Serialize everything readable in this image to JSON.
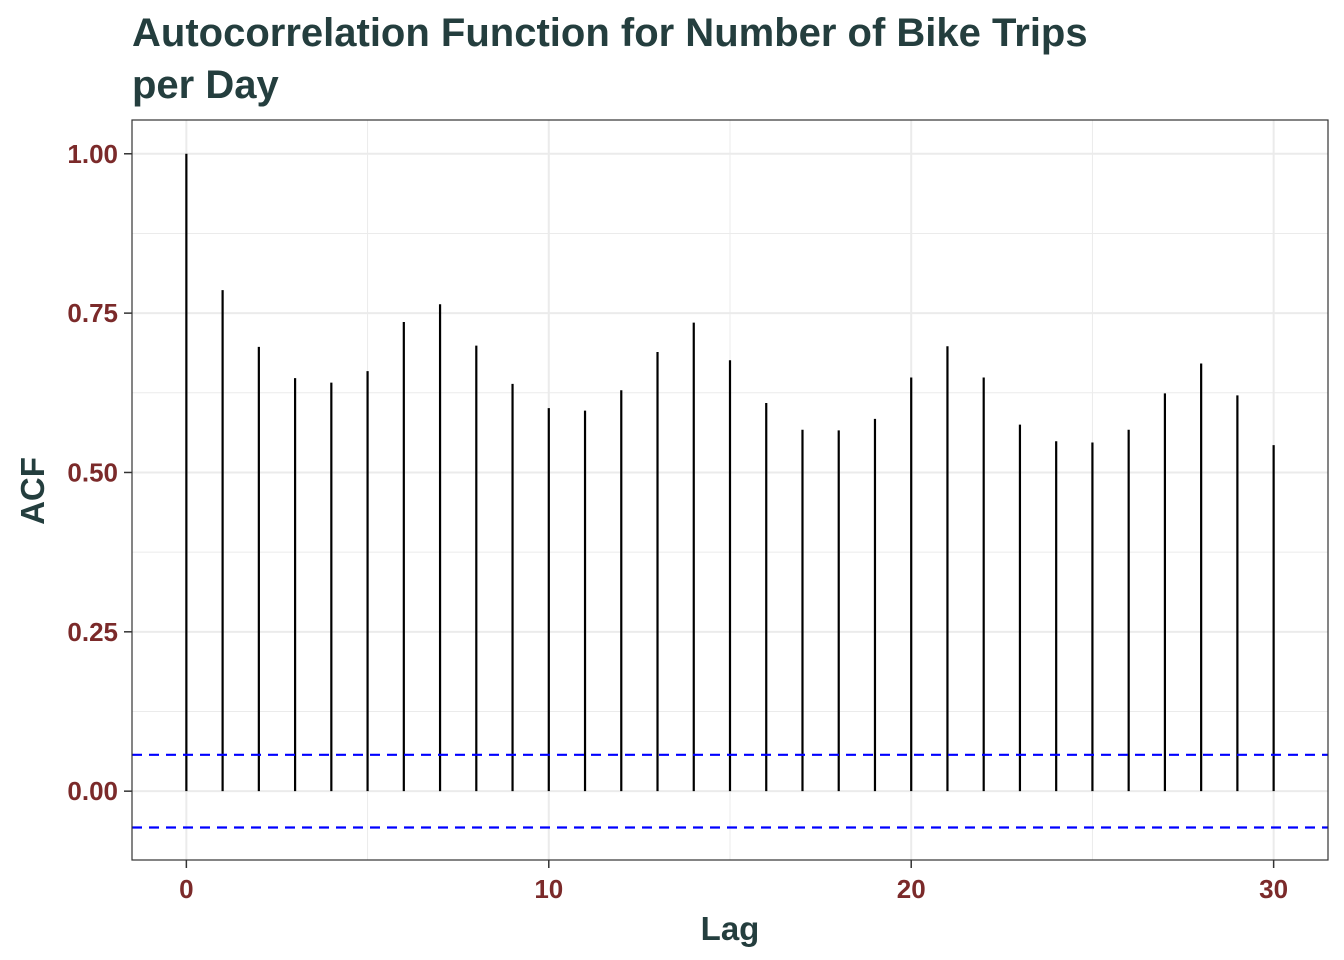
{
  "chart_data": {
    "type": "bar",
    "title_lines": [
      "Autocorrelation Function for Number of Bike Trips",
      "per Day"
    ],
    "xlabel": "Lag",
    "ylabel": "ACF",
    "x": [
      0,
      1,
      2,
      3,
      4,
      5,
      6,
      7,
      8,
      9,
      10,
      11,
      12,
      13,
      14,
      15,
      16,
      17,
      18,
      19,
      20,
      21,
      22,
      23,
      24,
      25,
      26,
      27,
      28,
      29,
      30
    ],
    "values": [
      1.0,
      0.786,
      0.697,
      0.648,
      0.641,
      0.659,
      0.736,
      0.764,
      0.699,
      0.639,
      0.601,
      0.597,
      0.629,
      0.689,
      0.735,
      0.676,
      0.609,
      0.567,
      0.566,
      0.584,
      0.649,
      0.698,
      0.649,
      0.575,
      0.549,
      0.547,
      0.567,
      0.624,
      0.671,
      0.621,
      0.543
    ],
    "xticks": [
      0,
      10,
      20,
      30
    ],
    "xtick_labels": [
      "0",
      "10",
      "20",
      "30"
    ],
    "yticks": [
      0.0,
      0.25,
      0.5,
      0.75,
      1.0
    ],
    "ytick_labels": [
      "0.00",
      "0.25",
      "0.50",
      "0.75",
      "1.00"
    ],
    "xlim": [
      -1.5,
      31.5
    ],
    "ylim": [
      -0.108,
      1.053
    ],
    "conf_limit": 0.057,
    "grid": true,
    "colors": {
      "bars": "#000000",
      "conf_lines": "#0000ff",
      "title": "#243e3e",
      "tick_labels": "#7b2a2a",
      "grid": "#ebebeb"
    }
  }
}
